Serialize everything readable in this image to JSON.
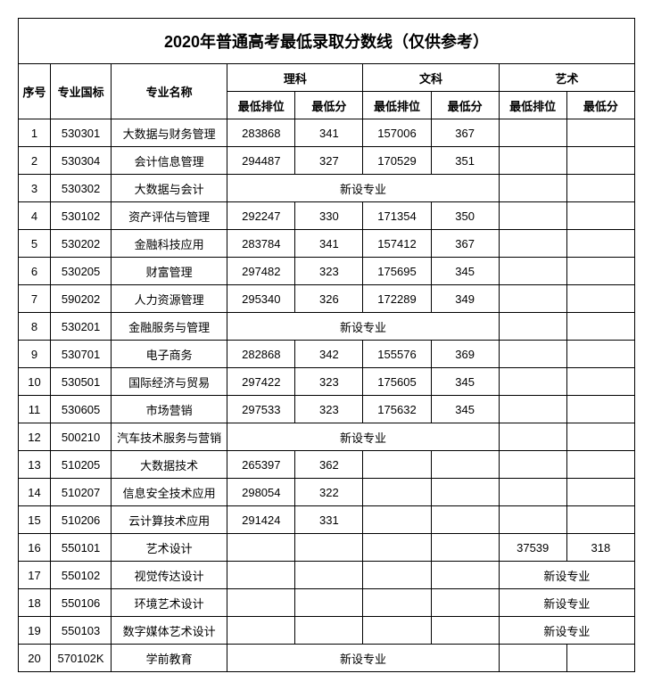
{
  "title": "2020年普通高考最低录取分数线（仅供参考）",
  "headers": {
    "idx": "序号",
    "code": "专业国标",
    "name": "专业名称",
    "science": "理科",
    "arts": "文科",
    "art": "艺术",
    "minRank": "最低排位",
    "minScore": "最低分"
  },
  "newMajor": "新设专业",
  "rows": [
    {
      "idx": "1",
      "code": "530301",
      "name": "大数据与财务管理",
      "sciRank": "283868",
      "sciScore": "341",
      "artRank": "157006",
      "artScore": "367"
    },
    {
      "idx": "2",
      "code": "530304",
      "name": "会计信息管理",
      "sciRank": "294487",
      "sciScore": "327",
      "artRank": "170529",
      "artScore": "351"
    },
    {
      "idx": "3",
      "code": "530302",
      "name": "大数据与会计",
      "newSciArts": true
    },
    {
      "idx": "4",
      "code": "530102",
      "name": "资产评估与管理",
      "sciRank": "292247",
      "sciScore": "330",
      "artRank": "171354",
      "artScore": "350"
    },
    {
      "idx": "5",
      "code": "530202",
      "name": "金融科技应用",
      "sciRank": "283784",
      "sciScore": "341",
      "artRank": "157412",
      "artScore": "367"
    },
    {
      "idx": "6",
      "code": "530205",
      "name": "财富管理",
      "sciRank": "297482",
      "sciScore": "323",
      "artRank": "175695",
      "artScore": "345"
    },
    {
      "idx": "7",
      "code": "590202",
      "name": "人力资源管理",
      "sciRank": "295340",
      "sciScore": "326",
      "artRank": "172289",
      "artScore": "349"
    },
    {
      "idx": "8",
      "code": "530201",
      "name": "金融服务与管理",
      "newSciArts": true
    },
    {
      "idx": "9",
      "code": "530701",
      "name": "电子商务",
      "sciRank": "282868",
      "sciScore": "342",
      "artRank": "155576",
      "artScore": "369"
    },
    {
      "idx": "10",
      "code": "530501",
      "name": "国际经济与贸易",
      "sciRank": "297422",
      "sciScore": "323",
      "artRank": "175605",
      "artScore": "345"
    },
    {
      "idx": "11",
      "code": "530605",
      "name": "市场营销",
      "sciRank": "297533",
      "sciScore": "323",
      "artRank": "175632",
      "artScore": "345"
    },
    {
      "idx": "12",
      "code": "500210",
      "name": "汽车技术服务与营销",
      "newSciArts": true
    },
    {
      "idx": "13",
      "code": "510205",
      "name": "大数据技术",
      "sciRank": "265397",
      "sciScore": "362"
    },
    {
      "idx": "14",
      "code": "510207",
      "name": "信息安全技术应用",
      "sciRank": "298054",
      "sciScore": "322"
    },
    {
      "idx": "15",
      "code": "510206",
      "name": "云计算技术应用",
      "sciRank": "291424",
      "sciScore": "331"
    },
    {
      "idx": "16",
      "code": "550101",
      "name": "艺术设计",
      "aRank": "37539",
      "aScore": "318"
    },
    {
      "idx": "17",
      "code": "550102",
      "name": "视觉传达设计",
      "newArt": true
    },
    {
      "idx": "18",
      "code": "550106",
      "name": "环境艺术设计",
      "newArt": true
    },
    {
      "idx": "19",
      "code": "550103",
      "name": "数字媒体艺术设计",
      "newArt": true
    },
    {
      "idx": "20",
      "code": "570102K",
      "name": "学前教育",
      "newSciArts": true
    }
  ],
  "style": {
    "background_color": "#ffffff",
    "border_color": "#000000",
    "title_fontsize": 18,
    "cell_fontsize": 13
  }
}
